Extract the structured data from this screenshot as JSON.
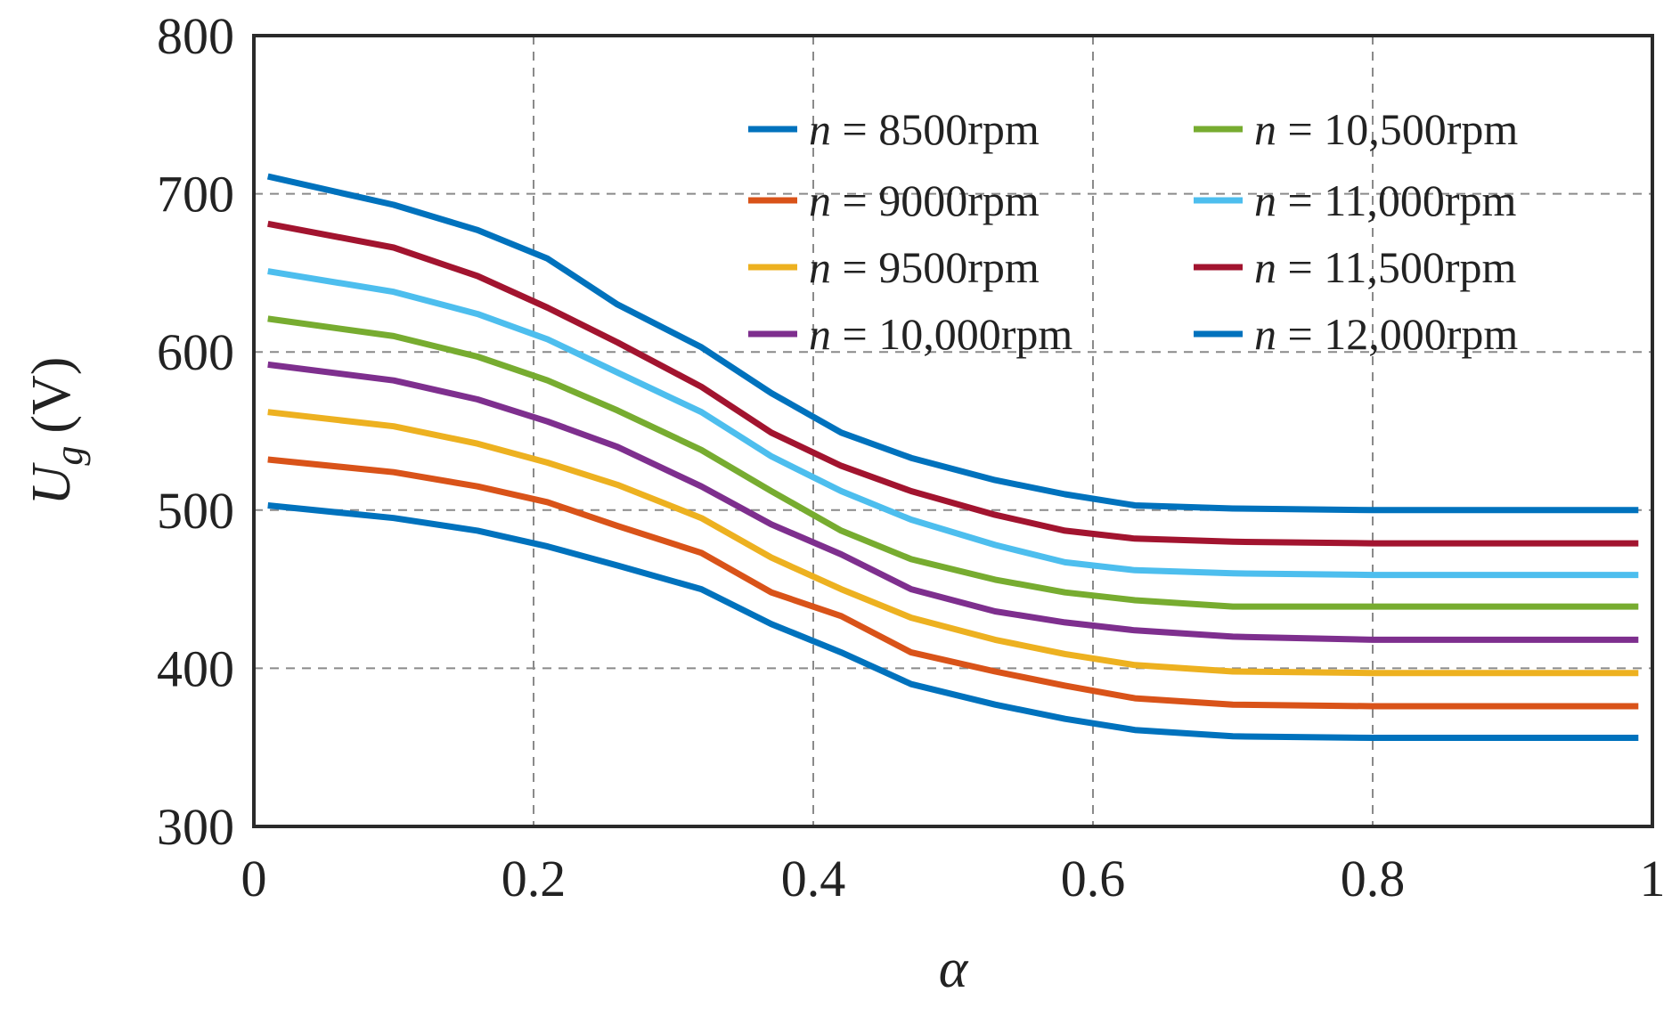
{
  "chart_data": {
    "type": "line",
    "xlabel": "α",
    "ylabel": "U",
    "ylabel_sub": "g",
    "ylabel_unit": "(V)",
    "xlim": [
      0,
      1
    ],
    "ylim": [
      300,
      800
    ],
    "xticks": [
      0,
      0.2,
      0.4,
      0.6,
      0.8,
      1
    ],
    "xtick_labels": [
      "0",
      "0.2",
      "0.4",
      "0.6",
      "0.8",
      "1"
    ],
    "yticks": [
      300,
      400,
      500,
      600,
      700,
      800
    ],
    "ytick_labels": [
      "300",
      "400",
      "500",
      "600",
      "700",
      "800"
    ],
    "grid": true,
    "legend_placement": "top-right",
    "x": [
      0.01,
      0.1,
      0.16,
      0.21,
      0.26,
      0.32,
      0.37,
      0.42,
      0.47,
      0.53,
      0.58,
      0.63,
      0.7,
      0.8,
      0.9,
      0.99
    ],
    "series": [
      {
        "name_var": "n",
        "name_eq": " = ",
        "name_val": "8500rpm",
        "color": "#0072bd",
        "values": [
          503,
          495,
          487,
          477,
          465,
          450,
          428,
          410,
          390,
          377,
          368,
          361,
          357,
          356,
          356,
          356
        ]
      },
      {
        "name_var": "n",
        "name_eq": " = ",
        "name_val": "9000rpm",
        "color": "#d95319",
        "values": [
          532,
          524,
          515,
          505,
          490,
          473,
          448,
          433,
          410,
          398,
          389,
          381,
          377,
          376,
          376,
          376
        ]
      },
      {
        "name_var": "n",
        "name_eq": " = ",
        "name_val": "9500rpm",
        "color": "#edb120",
        "values": [
          562,
          553,
          542,
          530,
          516,
          495,
          470,
          450,
          432,
          418,
          409,
          402,
          398,
          397,
          397,
          397
        ]
      },
      {
        "name_var": "n",
        "name_eq": " = ",
        "name_val": "10,000rpm",
        "color": "#7e2f8e",
        "values": [
          592,
          582,
          570,
          556,
          540,
          515,
          491,
          472,
          450,
          436,
          429,
          424,
          420,
          418,
          418,
          418
        ]
      },
      {
        "name_var": "n",
        "name_eq": " = ",
        "name_val": "10,500rpm",
        "color": "#77ac30",
        "values": [
          621,
          610,
          597,
          582,
          563,
          538,
          512,
          487,
          469,
          456,
          448,
          443,
          439,
          439,
          439,
          439
        ]
      },
      {
        "name_var": "n",
        "name_eq": " = ",
        "name_val": "11,000rpm",
        "color": "#4dbeee",
        "values": [
          651,
          638,
          624,
          608,
          587,
          562,
          534,
          512,
          494,
          478,
          467,
          462,
          460,
          459,
          459,
          459
        ]
      },
      {
        "name_var": "n",
        "name_eq": " = ",
        "name_val": "11,500rpm",
        "color": "#a2142f",
        "values": [
          681,
          666,
          648,
          628,
          606,
          578,
          549,
          528,
          512,
          497,
          487,
          482,
          480,
          479,
          479,
          479
        ]
      },
      {
        "name_var": "n",
        "name_eq": " = ",
        "name_val": "12,000rpm",
        "color": "#0072bd",
        "values": [
          711,
          693,
          677,
          659,
          630,
          603,
          574,
          549,
          533,
          519,
          510,
          503,
          501,
          500,
          500,
          500
        ]
      }
    ]
  }
}
